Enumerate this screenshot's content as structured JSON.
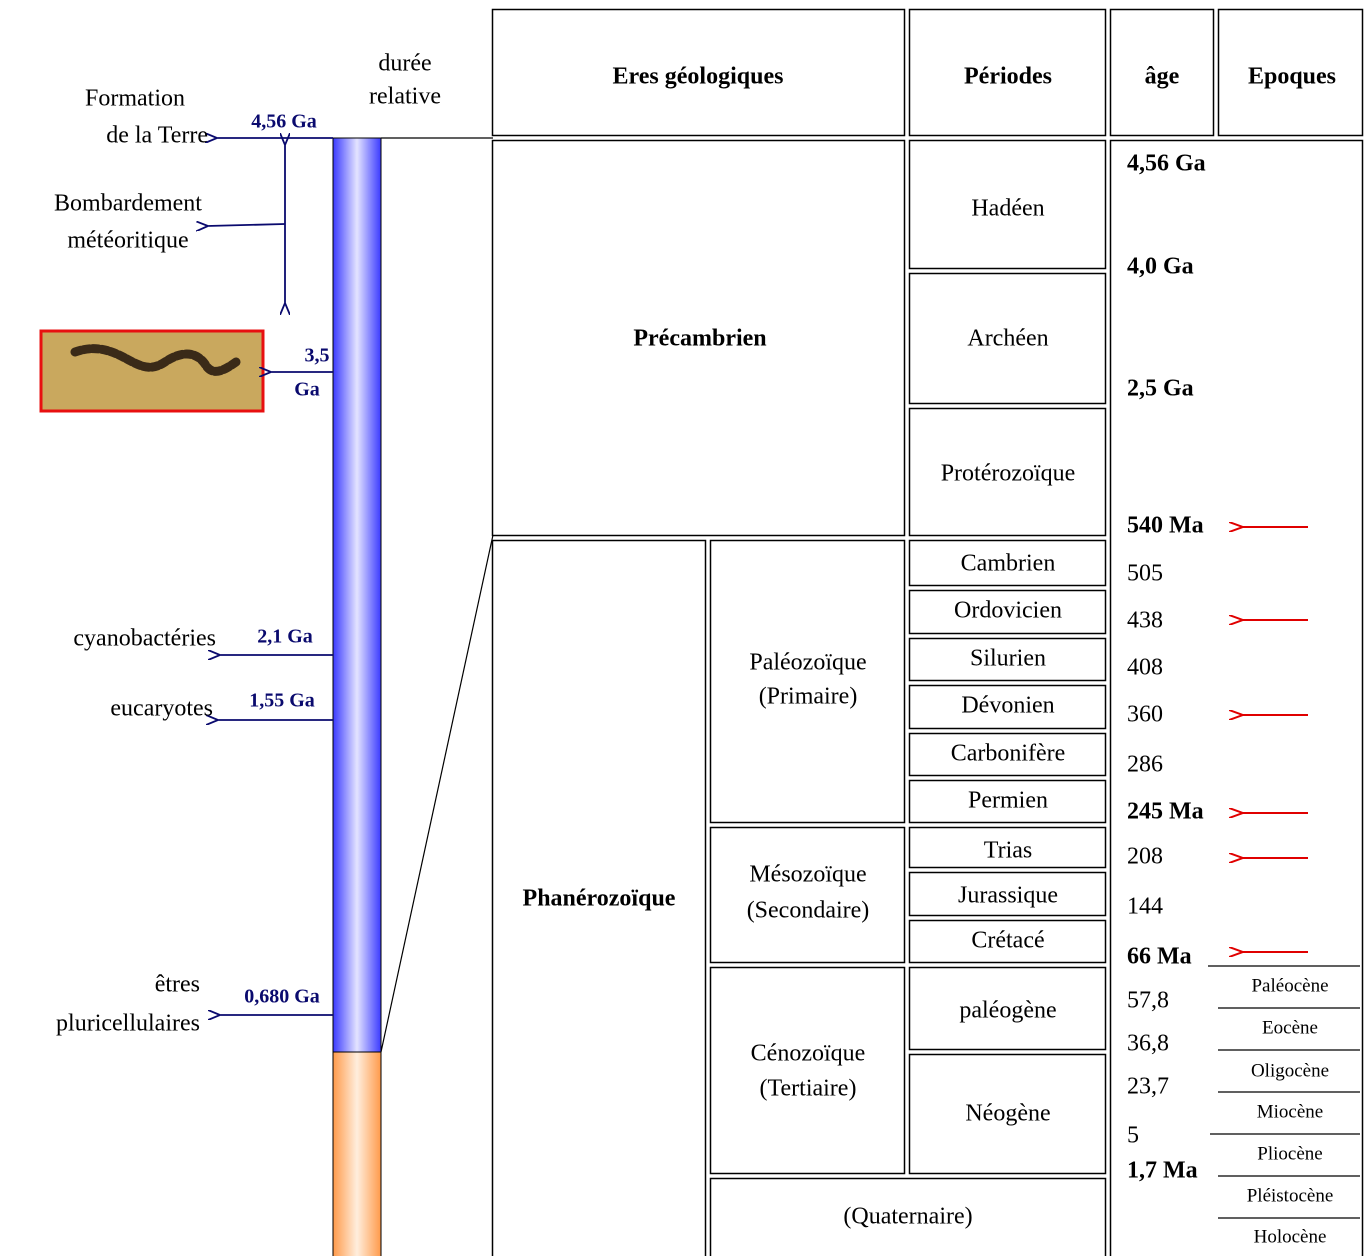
{
  "timeline": {
    "heading": [
      "durée",
      "relative"
    ],
    "events": [
      {
        "label": [
          "Formation",
          "de la Terre"
        ],
        "age": "4,56 Ga"
      },
      {
        "label": [
          "Bombardement",
          "météoritique"
        ]
      },
      {
        "age": [
          "3,5",
          "Ga"
        ]
      },
      {
        "label": [
          "cyanobactéries"
        ],
        "age": "2,1 Ga"
      },
      {
        "label": [
          "eucaryotes"
        ],
        "age": "1,55 Ga"
      },
      {
        "label": [
          "êtres",
          "pluricellulaires"
        ],
        "age": "0,680 Ga"
      }
    ]
  },
  "table": {
    "headers": [
      "Eres géologiques",
      "Périodes",
      "âge",
      "Epoques"
    ],
    "eons": [
      "Précambrien",
      "Phanérozoïque"
    ],
    "precambrian_periods": [
      "Hadéen",
      "Archéen",
      "Protérozoïque"
    ],
    "eras": [
      [
        "Paléozoïque",
        "(Primaire)"
      ],
      [
        "Mésozoïque",
        "(Secondaire)"
      ],
      [
        "Cénozoïque",
        "(Tertiaire)"
      ],
      [
        "(Quaternaire)"
      ]
    ],
    "periods": [
      "Cambrien",
      "Ordovicien",
      "Silurien",
      "Dévonien",
      "Carbonifère",
      "Permien",
      "Trias",
      "Jurassique",
      "Crétacé",
      "paléogène",
      "Néogène"
    ],
    "ages": [
      "4,56 Ga",
      "4,0 Ga",
      "2,5 Ga",
      "540 Ma",
      "505",
      "438",
      "408",
      "360",
      "286",
      "245 Ma",
      "208",
      "144",
      "66 Ma",
      "57,8",
      "36,8",
      "23,7",
      "5",
      "1,7 Ma"
    ],
    "epochs": [
      "Paléocène",
      "Eocène",
      "Oligocène",
      "Miocène",
      "Pliocène",
      "Pléistocène",
      "Holocène"
    ]
  }
}
